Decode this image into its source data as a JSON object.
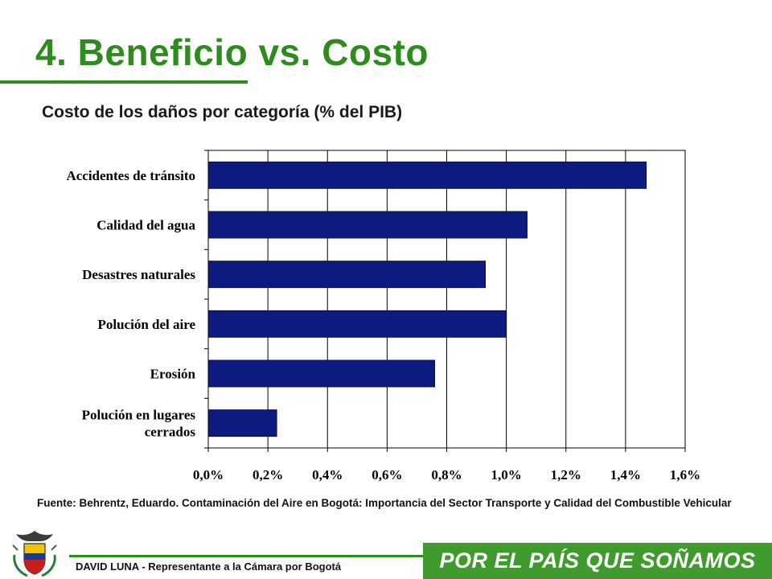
{
  "page": {
    "title": "4. Beneficio vs. Costo",
    "subtitle": "Costo de los daños por categoría (% del PIB)",
    "source": "Fuente: Behrentz, Eduardo. Contaminación del Aire en Bogotá: Importancia del Sector Transporte y Calidad del Combustible Vehicular",
    "footer_author": "DAVID LUNA - Representante a la Cámara por Bogotá",
    "slogan": "POR EL PAÍS QUE SOÑAMOS"
  },
  "colors": {
    "title": "#2e8b1e",
    "bar": "#0d1a80",
    "slogan_bg": "#3f9b2d"
  },
  "icons": {
    "seal": "coat-of-arms-icon"
  },
  "chart_data": {
    "type": "bar",
    "orientation": "horizontal",
    "categories": [
      "Accidentes de tránsito",
      "Calidad del agua",
      "Desastres naturales",
      "Polución del aire",
      "Erosión",
      "Polución en lugares cerrados"
    ],
    "category_lines": [
      [
        "Accidentes de tránsito"
      ],
      [
        "Calidad del agua"
      ],
      [
        "Desastres naturales"
      ],
      [
        "Polución del aire"
      ],
      [
        "Erosión"
      ],
      [
        "Polución en lugares",
        "cerrados"
      ]
    ],
    "values": [
      1.47,
      1.07,
      0.93,
      1.0,
      0.76,
      0.23
    ],
    "xlim": [
      0,
      1.6
    ],
    "xticks": [
      0,
      0.2,
      0.4,
      0.6,
      0.8,
      1.0,
      1.2,
      1.4,
      1.6
    ],
    "xtick_labels": [
      "0,0%",
      "0,2%",
      "0,4%",
      "0,6%",
      "0,8%",
      "1,0%",
      "1,2%",
      "1,4%",
      "1,6%"
    ],
    "grid": true,
    "legend": "none"
  }
}
